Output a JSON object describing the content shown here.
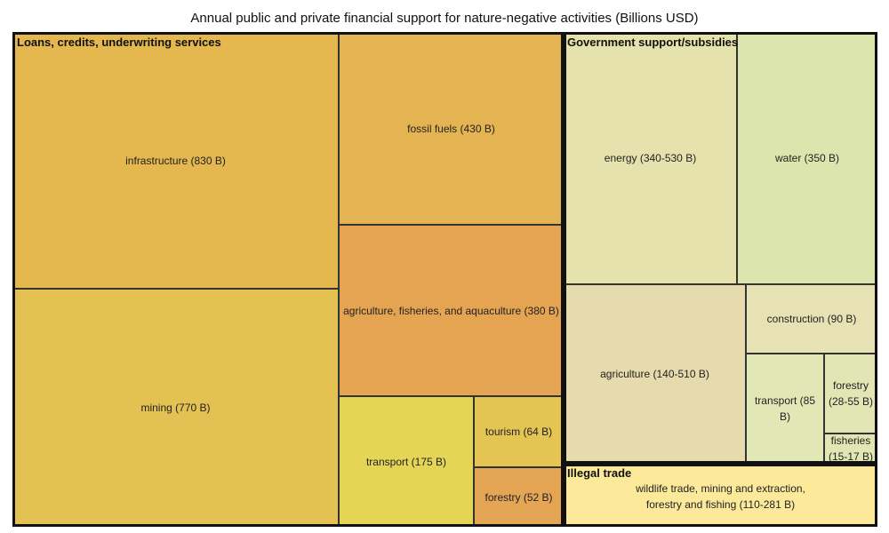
{
  "chart_data": {
    "type": "treemap",
    "title": "Annual public and private financial support for nature-negative activities (Billions USD)",
    "groups": [
      {
        "name": "Loans, credits, underwriting services",
        "color": "#e4b84e",
        "items": [
          {
            "label": "infrastructure (830 B)",
            "value": 830,
            "color": "#e4b84e"
          },
          {
            "label": "mining (770 B)",
            "value": 770,
            "color": "#e3c152"
          },
          {
            "label": "fossil fuels (430 B)",
            "value": 430,
            "color": "#e4b452"
          },
          {
            "label": "agriculture, fisheries, and aquaculture (380 B)",
            "value": 380,
            "color": "#e4a452"
          },
          {
            "label": "transport (175 B)",
            "value": 175,
            "color": "#e4d556"
          },
          {
            "label": "tourism (64 B)",
            "value": 64,
            "color": "#e4c452"
          },
          {
            "label": "forestry (52 B)",
            "value": 52,
            "color": "#e4a555"
          }
        ]
      },
      {
        "name": "Government support/subsidies",
        "color": "#e6e2ad",
        "items": [
          {
            "label": "energy (340-530 B)",
            "value": [
              340,
              530
            ],
            "color": "#e6e2ad"
          },
          {
            "label": "water (350 B)",
            "value": 350,
            "color": "#dce5ad"
          },
          {
            "label": "agriculture (140-510 B)",
            "value": [
              140,
              510
            ],
            "color": "#e6dbad"
          },
          {
            "label": "construction (90 B)",
            "value": 90,
            "color": "#e6e2b4"
          },
          {
            "label": "transport (85 B)",
            "value": 85,
            "color": "#e2e7b6"
          },
          {
            "label": "forestry\n(28-55 B)",
            "value": [
              28,
              55
            ],
            "color": "#e2e6b4"
          },
          {
            "label": "fisheries\n(15-17 B)",
            "value": [
              15,
              17
            ],
            "color": "#e2e6b4"
          }
        ]
      },
      {
        "name": "Illegal trade",
        "color": "#fce99a",
        "description": "wildlife trade, mining and extraction,\nforestry and fishing (110-281 B)",
        "value": [
          110,
          281
        ]
      }
    ]
  }
}
